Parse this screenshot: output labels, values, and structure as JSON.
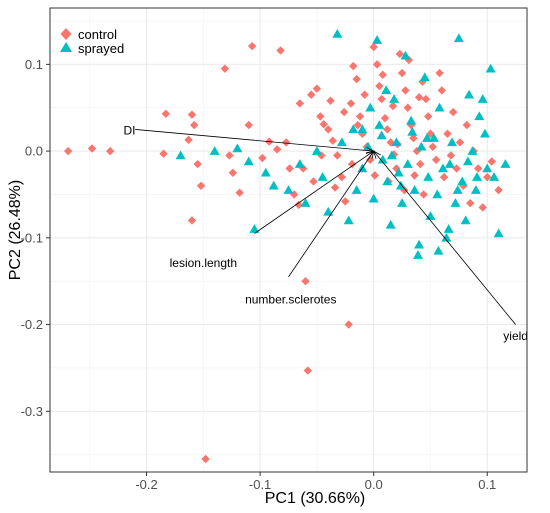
{
  "chart_data": {
    "type": "scatter",
    "title": "",
    "xlabel": "PC1 (30.66%)",
    "ylabel": "PC2 (26.48%)",
    "xlim": [
      -0.285,
      0.135
    ],
    "ylim": [
      -0.37,
      0.165
    ],
    "x_ticks": [
      -0.2,
      -0.1,
      0.0,
      0.1
    ],
    "x_tick_labels": [
      "-0.2",
      "-0.1",
      "0.0",
      "0.1"
    ],
    "y_ticks": [
      -0.3,
      -0.2,
      -0.1,
      0.0,
      0.1
    ],
    "y_tick_labels": [
      "-0.3",
      "-0.2",
      "-0.1",
      "0.0",
      "0.1"
    ],
    "grid": true,
    "legend_position": "top-left",
    "colors": {
      "control": "#F8766D",
      "sprayed": "#00BFC4",
      "loadings": "#000000"
    },
    "series": [
      {
        "name": "control",
        "marker": "diamond",
        "points": [
          [
            -0.269,
            0.0
          ],
          [
            -0.248,
            0.003
          ],
          [
            -0.232,
            0.0
          ],
          [
            -0.185,
            -0.003
          ],
          [
            -0.183,
            0.043
          ],
          [
            -0.163,
            0.013
          ],
          [
            -0.16,
            0.042
          ],
          [
            -0.158,
            0.03
          ],
          [
            -0.155,
            -0.015
          ],
          [
            -0.152,
            -0.04
          ],
          [
            -0.16,
            -0.08
          ],
          [
            -0.148,
            -0.355
          ],
          [
            -0.131,
            0.095
          ],
          [
            -0.127,
            -0.005
          ],
          [
            -0.124,
            -0.025
          ],
          [
            -0.118,
            -0.048
          ],
          [
            -0.11,
            0.03
          ],
          [
            -0.107,
            0.121
          ],
          [
            -0.098,
            -0.008
          ],
          [
            -0.092,
            0.011
          ],
          [
            -0.085,
            0.002
          ],
          [
            -0.082,
            0.116
          ],
          [
            -0.077,
            0.01
          ],
          [
            -0.074,
            -0.02
          ],
          [
            -0.07,
            -0.05
          ],
          [
            -0.066,
            -0.062
          ],
          [
            -0.06,
            -0.15
          ],
          [
            -0.058,
            -0.253
          ],
          [
            -0.055,
            0.065
          ],
          [
            -0.05,
            0.072
          ],
          [
            -0.047,
            0.04
          ],
          [
            -0.044,
            0.031
          ],
          [
            -0.04,
            0.025
          ],
          [
            -0.036,
            0.012
          ],
          [
            -0.032,
            -0.005
          ],
          [
            -0.028,
            -0.03
          ],
          [
            -0.025,
            -0.058
          ],
          [
            -0.022,
            -0.2
          ],
          [
            -0.02,
            0.055
          ],
          [
            -0.018,
            0.098
          ],
          [
            -0.015,
            0.083
          ],
          [
            -0.012,
            0.04
          ],
          [
            -0.01,
            0.02
          ],
          [
            -0.006,
            0.005
          ],
          [
            -0.003,
            -0.01
          ],
          [
            0.0,
            0.12
          ],
          [
            0.003,
            0.1
          ],
          [
            0.005,
            0.075
          ],
          [
            0.007,
            0.06
          ],
          [
            0.01,
            0.038
          ],
          [
            0.012,
            0.025
          ],
          [
            0.015,
            0.01
          ],
          [
            0.018,
            -0.004
          ],
          [
            0.02,
            -0.02
          ],
          [
            0.023,
            0.112
          ],
          [
            0.025,
            0.09
          ],
          [
            0.028,
            0.07
          ],
          [
            0.03,
            0.05
          ],
          [
            0.033,
            0.03
          ],
          [
            0.035,
            0.015
          ],
          [
            0.038,
            0.0
          ],
          [
            0.041,
            -0.015
          ],
          [
            0.043,
            0.08
          ],
          [
            0.046,
            0.06
          ],
          [
            0.048,
            0.04
          ],
          [
            0.05,
            0.02
          ],
          [
            0.052,
            0.005
          ],
          [
            0.055,
            -0.01
          ],
          [
            0.058,
            0.09
          ],
          [
            0.06,
            0.07
          ],
          [
            0.062,
            -0.03
          ],
          [
            0.065,
            0.02
          ],
          [
            0.068,
            -0.005
          ],
          [
            0.07,
            0.045
          ],
          [
            0.073,
            -0.02
          ],
          [
            0.076,
            0.01
          ],
          [
            0.079,
            -0.04
          ],
          [
            0.082,
            0.03
          ],
          [
            0.085,
            -0.06
          ],
          [
            0.088,
            0.0
          ],
          [
            0.092,
            -0.02
          ],
          [
            0.096,
            -0.065
          ],
          [
            0.1,
            -0.03
          ],
          [
            0.104,
            -0.012
          ],
          [
            0.11,
            -0.045
          ],
          [
            -0.065,
            0.055
          ],
          [
            -0.062,
            -0.02
          ],
          [
            -0.053,
            -0.035
          ],
          [
            -0.046,
            -0.005
          ],
          [
            -0.038,
            0.058
          ],
          [
            -0.034,
            -0.042
          ],
          [
            -0.026,
            0.045
          ],
          [
            -0.019,
            -0.015
          ],
          [
            -0.014,
            0.03
          ],
          [
            -0.008,
            0.065
          ],
          [
            0.001,
            -0.028
          ],
          [
            0.008,
            0.088
          ],
          [
            0.013,
            -0.035
          ],
          [
            0.017,
            0.052
          ],
          [
            0.021,
            0.008
          ],
          [
            0.027,
            -0.045
          ],
          [
            0.031,
            0.105
          ],
          [
            0.036,
            -0.028
          ],
          [
            0.04,
            0.062
          ],
          [
            0.044,
            -0.05
          ]
        ]
      },
      {
        "name": "sprayed",
        "marker": "triangle",
        "points": [
          [
            -0.17,
            -0.005
          ],
          [
            -0.14,
            0.0
          ],
          [
            -0.12,
            0.003
          ],
          [
            -0.11,
            -0.012
          ],
          [
            -0.105,
            -0.09
          ],
          [
            -0.095,
            -0.025
          ],
          [
            -0.088,
            -0.04
          ],
          [
            -0.075,
            -0.045
          ],
          [
            -0.065,
            -0.015
          ],
          [
            -0.06,
            -0.06
          ],
          [
            -0.05,
            0.0
          ],
          [
            -0.045,
            -0.03
          ],
          [
            -0.04,
            -0.07
          ],
          [
            -0.032,
            0.135
          ],
          [
            -0.028,
            0.01
          ],
          [
            -0.022,
            -0.08
          ],
          [
            -0.018,
            0.025
          ],
          [
            -0.015,
            -0.045
          ],
          [
            -0.01,
            -0.02
          ],
          [
            -0.005,
            0.005
          ],
          [
            0.0,
            -0.055
          ],
          [
            0.003,
            0.128
          ],
          [
            0.005,
            0.03
          ],
          [
            0.008,
            -0.01
          ],
          [
            0.012,
            -0.035
          ],
          [
            0.015,
            -0.085
          ],
          [
            0.018,
            0.06
          ],
          [
            0.02,
            0.01
          ],
          [
            0.022,
            -0.025
          ],
          [
            0.025,
            -0.06
          ],
          [
            0.028,
            0.11
          ],
          [
            0.03,
            -0.015
          ],
          [
            0.033,
            0.035
          ],
          [
            0.036,
            -0.045
          ],
          [
            0.04,
            -0.108
          ],
          [
            0.042,
            0.005
          ],
          [
            0.045,
            0.085
          ],
          [
            0.048,
            -0.03
          ],
          [
            0.05,
            -0.075
          ],
          [
            0.053,
            0.015
          ],
          [
            0.056,
            -0.05
          ],
          [
            0.058,
            0.05
          ],
          [
            0.061,
            -0.02
          ],
          [
            0.064,
            -0.1
          ],
          [
            0.066,
            -0.09
          ],
          [
            0.069,
            0.01
          ],
          [
            0.072,
            -0.06
          ],
          [
            0.075,
            0.13
          ],
          [
            0.078,
            -0.035
          ],
          [
            0.081,
            -0.08
          ],
          [
            0.084,
            0.065
          ],
          [
            0.087,
            0.0
          ],
          [
            0.09,
            -0.045
          ],
          [
            0.093,
            0.04
          ],
          [
            0.096,
            0.06
          ],
          [
            0.1,
            -0.02
          ],
          [
            0.103,
            0.095
          ],
          [
            0.106,
            -0.03
          ],
          [
            0.11,
            -0.095
          ],
          [
            0.116,
            -0.015
          ],
          [
            -0.01,
            0.025
          ],
          [
            -0.003,
            0.05
          ],
          [
            0.007,
            0.018
          ],
          [
            0.011,
            0.07
          ],
          [
            0.016,
            -0.005
          ],
          [
            0.024,
            -0.04
          ],
          [
            0.034,
            0.022
          ],
          [
            0.039,
            -0.12
          ],
          [
            0.047,
            0.015
          ],
          [
            0.057,
            -0.115
          ],
          [
            0.067,
            -0.015
          ],
          [
            0.074,
            -0.045
          ],
          [
            0.083,
            -0.012
          ],
          [
            0.091,
            -0.03
          ],
          [
            0.098,
            0.02
          ]
        ]
      }
    ],
    "loadings": [
      {
        "label": "DI",
        "x": -0.21,
        "y": 0.025,
        "label_x": -0.215,
        "label_y": 0.024
      },
      {
        "label": "lesion.length",
        "x": -0.105,
        "y": -0.095,
        "label_x": -0.15,
        "label_y": -0.129
      },
      {
        "label": "number.sclerotes",
        "x": -0.075,
        "y": -0.145,
        "label_x": -0.073,
        "label_y": -0.171
      },
      {
        "label": "yield",
        "x": 0.125,
        "y": -0.2,
        "label_x": 0.125,
        "label_y": -0.213
      }
    ]
  }
}
